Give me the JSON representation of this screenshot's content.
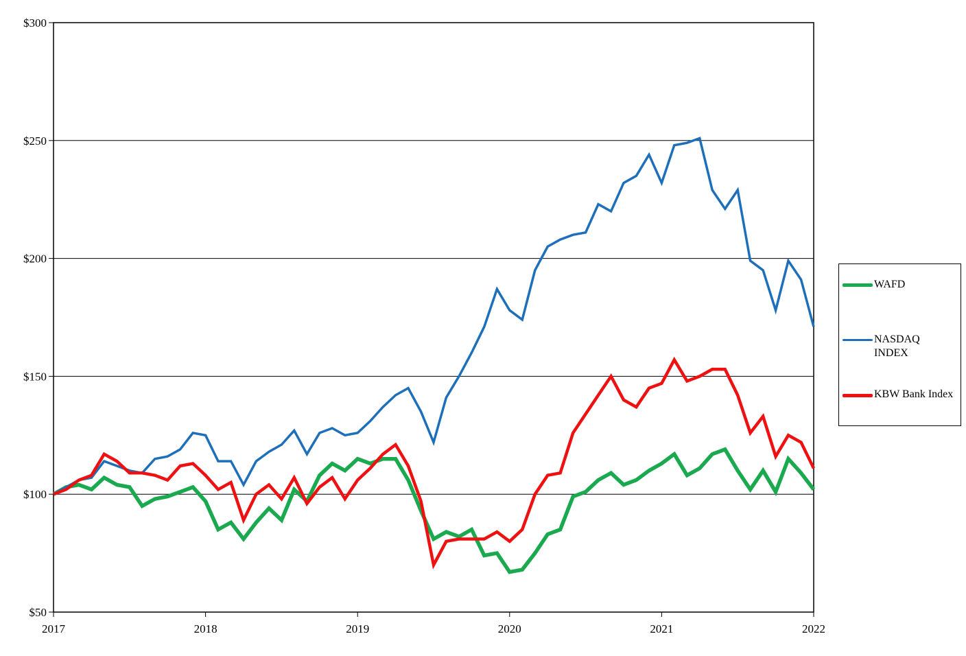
{
  "chart_data": {
    "type": "line",
    "title": "",
    "xlabel": "",
    "ylabel": "",
    "xlim": [
      2017,
      2022
    ],
    "ylim": [
      50,
      300
    ],
    "y_ticks": [
      "$50",
      "$100",
      "$150",
      "$200",
      "$250",
      "$300"
    ],
    "y_tick_values": [
      50,
      100,
      150,
      200,
      250,
      300
    ],
    "x_ticks": [
      "2017",
      "2018",
      "2019",
      "2020",
      "2021",
      "2022"
    ],
    "x_tick_values": [
      2017,
      2018,
      2019,
      2020,
      2021,
      2022
    ],
    "grid": "horizontal",
    "legend_position": "right",
    "series": [
      {
        "name": "WAFD",
        "color": "#1aa94f",
        "x": [
          2017.0,
          2017.083,
          2017.167,
          2017.25,
          2017.333,
          2017.417,
          2017.5,
          2017.583,
          2017.667,
          2017.75,
          2017.833,
          2017.917,
          2018.0,
          2018.083,
          2018.167,
          2018.25,
          2018.333,
          2018.417,
          2018.5,
          2018.583,
          2018.667,
          2018.75,
          2018.833,
          2018.917,
          2019.0,
          2019.083,
          2019.167,
          2019.25,
          2019.333,
          2019.417,
          2019.5,
          2019.583,
          2019.667,
          2019.75,
          2019.833,
          2019.917,
          2020.0,
          2020.083,
          2020.167,
          2020.25,
          2020.333,
          2020.417,
          2020.5,
          2020.583,
          2020.667,
          2020.75,
          2020.833,
          2020.917,
          2021.0,
          2021.083,
          2021.167,
          2021.25,
          2021.333,
          2021.417,
          2021.5,
          2021.583,
          2021.667,
          2021.75,
          2021.833,
          2021.917,
          2022.0
        ],
        "values": [
          100,
          103,
          104,
          102,
          107,
          104,
          103,
          95,
          98,
          99,
          101,
          103,
          97,
          85,
          88,
          81,
          88,
          94,
          89,
          102,
          97,
          108,
          113,
          110,
          115,
          113,
          115,
          115,
          106,
          93,
          81,
          84,
          82,
          85,
          74,
          75,
          67,
          68,
          75,
          83,
          85,
          99,
          101,
          106,
          109,
          104,
          106,
          110,
          113,
          117,
          108,
          111,
          117,
          119,
          110,
          102,
          110,
          101,
          115,
          109,
          102
        ]
      },
      {
        "name": "NASDAQ\nINDEX",
        "color": "#1e6fba",
        "x": [
          2017.0,
          2017.083,
          2017.167,
          2017.25,
          2017.333,
          2017.417,
          2017.5,
          2017.583,
          2017.667,
          2017.75,
          2017.833,
          2017.917,
          2018.0,
          2018.083,
          2018.167,
          2018.25,
          2018.333,
          2018.417,
          2018.5,
          2018.583,
          2018.667,
          2018.75,
          2018.833,
          2018.917,
          2019.0,
          2019.083,
          2019.167,
          2019.25,
          2019.333,
          2019.417,
          2019.5,
          2019.583,
          2019.667,
          2019.75,
          2019.833,
          2019.917,
          2020.0,
          2020.083,
          2020.167,
          2020.25,
          2020.333,
          2020.417,
          2020.5,
          2020.583,
          2020.667,
          2020.75,
          2020.833,
          2020.917,
          2021.0,
          2021.083,
          2021.167,
          2021.25,
          2021.333,
          2021.417,
          2021.5,
          2021.583,
          2021.667,
          2021.75,
          2021.833,
          2021.917,
          2022.0
        ],
        "values": [
          100,
          103,
          106,
          107,
          114,
          112,
          110,
          109,
          115,
          116,
          119,
          126,
          125,
          114,
          114,
          104,
          114,
          118,
          121,
          127,
          117,
          126,
          128,
          125,
          126,
          131,
          137,
          142,
          145,
          135,
          122,
          141,
          150,
          160,
          171,
          187,
          178,
          174,
          195,
          205,
          208,
          210,
          211,
          223,
          220,
          232,
          235,
          244,
          232,
          248,
          249,
          251,
          229,
          221,
          229,
          199,
          195,
          178,
          199,
          191,
          171
        ]
      },
      {
        "name": "KBW Bank Index",
        "color": "#ee1111",
        "x": [
          2017.0,
          2017.083,
          2017.167,
          2017.25,
          2017.333,
          2017.417,
          2017.5,
          2017.583,
          2017.667,
          2017.75,
          2017.833,
          2017.917,
          2018.0,
          2018.083,
          2018.167,
          2018.25,
          2018.333,
          2018.417,
          2018.5,
          2018.583,
          2018.667,
          2018.75,
          2018.833,
          2018.917,
          2019.0,
          2019.083,
          2019.167,
          2019.25,
          2019.333,
          2019.417,
          2019.5,
          2019.583,
          2019.667,
          2019.75,
          2019.833,
          2019.917,
          2020.0,
          2020.083,
          2020.167,
          2020.25,
          2020.333,
          2020.417,
          2020.5,
          2020.583,
          2020.667,
          2020.75,
          2020.833,
          2020.917,
          2021.0,
          2021.083,
          2021.167,
          2021.25,
          2021.333,
          2021.417,
          2021.5,
          2021.583,
          2021.667,
          2021.75,
          2021.833,
          2021.917,
          2022.0
        ],
        "values": [
          100,
          102,
          106,
          108,
          117,
          114,
          109,
          109,
          108,
          106,
          112,
          113,
          108,
          102,
          105,
          89,
          100,
          104,
          98,
          107,
          96,
          103,
          107,
          98,
          106,
          111,
          117,
          121,
          112,
          97,
          70,
          80,
          81,
          81,
          81,
          84,
          80,
          85,
          100,
          108,
          109,
          126,
          134,
          142,
          150,
          140,
          137,
          145,
          147,
          157,
          148,
          150,
          153,
          153,
          142,
          126,
          133,
          116,
          125,
          122,
          111
        ]
      }
    ]
  }
}
